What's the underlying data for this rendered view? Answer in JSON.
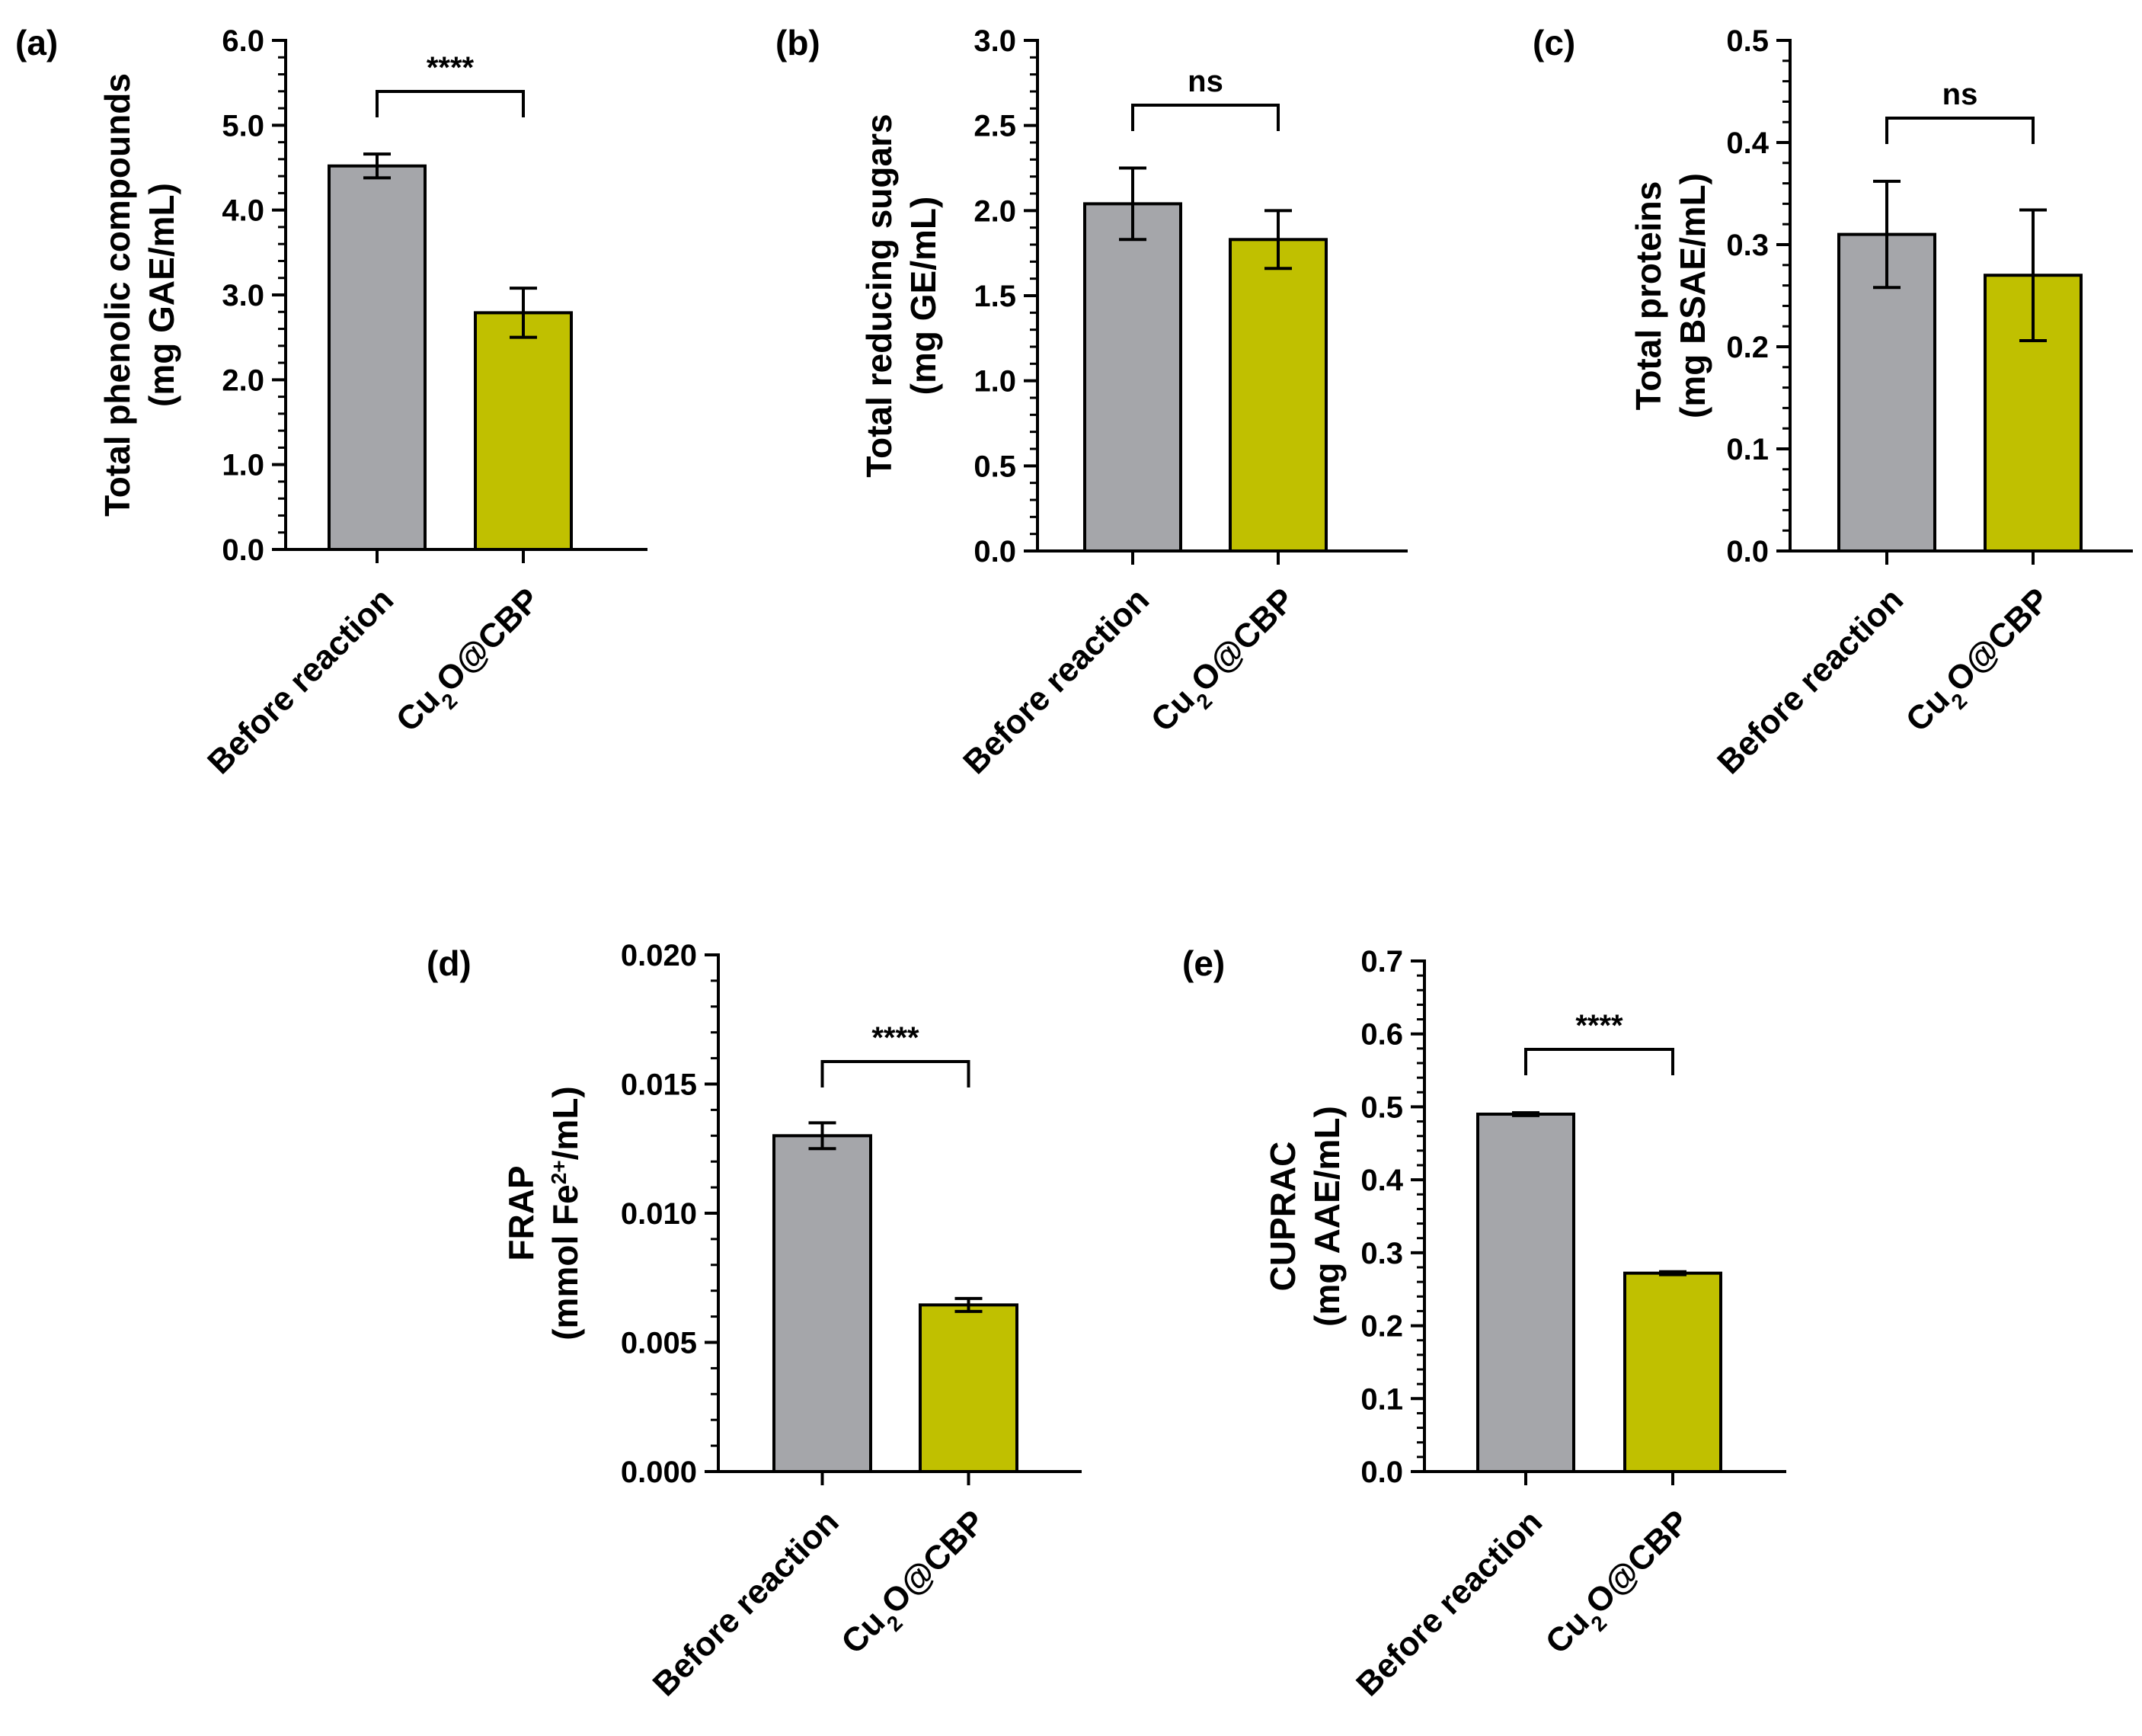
{
  "colors": {
    "before": "#a5a6aa",
    "after": "#c0c000",
    "axis": "#000000"
  },
  "chart_data": [
    {
      "id": "a",
      "type": "bar",
      "panel_label": "(a)",
      "categories": [
        "Before reaction",
        "Cu2O@CBP"
      ],
      "category_parts": [
        [
          {
            "t": "Before reaction"
          }
        ],
        [
          {
            "t": "Cu"
          },
          {
            "t": "2",
            "sub": true
          },
          {
            "t": "O@CBP"
          }
        ]
      ],
      "values": [
        4.52,
        2.79
      ],
      "errors": [
        0.14,
        0.29
      ],
      "ylabel_lines": [
        [
          {
            "t": "Total phenolic compounds"
          }
        ],
        [
          {
            "t": "(mg GAE/mL)"
          }
        ]
      ],
      "ylim": [
        0,
        6.0
      ],
      "ticks": [
        "0.0",
        "1.0",
        "2.0",
        "3.0",
        "4.0",
        "5.0",
        "6.0"
      ],
      "minor_per_major": 5,
      "significance": "****"
    },
    {
      "id": "b",
      "type": "bar",
      "panel_label": "(b)",
      "categories": [
        "Before reaction",
        "Cu2O@CBP"
      ],
      "category_parts": [
        [
          {
            "t": "Before reaction"
          }
        ],
        [
          {
            "t": "Cu"
          },
          {
            "t": "2",
            "sub": true
          },
          {
            "t": "O@CBP"
          }
        ]
      ],
      "values": [
        2.04,
        1.83
      ],
      "errors": [
        0.21,
        0.17
      ],
      "ylabel_lines": [
        [
          {
            "t": "Total reducing sugars"
          }
        ],
        [
          {
            "t": "(mg GE/mL)"
          }
        ]
      ],
      "ylim": [
        0,
        3.0
      ],
      "ticks": [
        "0.0",
        "0.5",
        "1.0",
        "1.5",
        "2.0",
        "2.5",
        "3.0"
      ],
      "minor_per_major": 5,
      "significance": "ns"
    },
    {
      "id": "c",
      "type": "bar",
      "panel_label": "(c)",
      "categories": [
        "Before reaction",
        "Cu2O@CBP"
      ],
      "category_parts": [
        [
          {
            "t": "Before reaction"
          }
        ],
        [
          {
            "t": "Cu"
          },
          {
            "t": "2",
            "sub": true
          },
          {
            "t": "O@CBP"
          }
        ]
      ],
      "values": [
        0.31,
        0.27
      ],
      "errors": [
        0.052,
        0.064
      ],
      "ylabel_lines": [
        [
          {
            "t": "Total proteins"
          }
        ],
        [
          {
            "t": "(mg BSAE/mL)"
          }
        ]
      ],
      "ylim": [
        0,
        0.5
      ],
      "ticks": [
        "0.0",
        "0.1",
        "0.2",
        "0.3",
        "0.4",
        "0.5"
      ],
      "minor_per_major": 5,
      "significance": "ns"
    },
    {
      "id": "d",
      "type": "bar",
      "panel_label": "(d)",
      "categories": [
        "Before reaction",
        "Cu2O@CBP"
      ],
      "category_parts": [
        [
          {
            "t": "Before reaction"
          }
        ],
        [
          {
            "t": "Cu"
          },
          {
            "t": "2",
            "sub": true
          },
          {
            "t": "O@CBP"
          }
        ]
      ],
      "values": [
        0.013,
        0.00645
      ],
      "errors": [
        0.0005,
        0.00025
      ],
      "ylabel_lines": [
        [
          {
            "t": "FRAP"
          }
        ],
        [
          {
            "t": "(mmol Fe"
          },
          {
            "t": "2+",
            "sup": true
          },
          {
            "t": "/mL)"
          }
        ]
      ],
      "ylim": [
        0,
        0.02
      ],
      "ticks": [
        "0.000",
        "0.005",
        "0.010",
        "0.015",
        "0.020"
      ],
      "minor_per_major": 5,
      "significance": "****"
    },
    {
      "id": "e",
      "type": "bar",
      "panel_label": "(e)",
      "categories": [
        "Before reaction",
        "Cu2O@CBP"
      ],
      "category_parts": [
        [
          {
            "t": "Before reaction"
          }
        ],
        [
          {
            "t": "Cu"
          },
          {
            "t": "2",
            "sub": true
          },
          {
            "t": "O@CBP"
          }
        ]
      ],
      "values": [
        0.49,
        0.272
      ],
      "errors": [
        0.002,
        0.002
      ],
      "ylabel_lines": [
        [
          {
            "t": "CUPRAC"
          }
        ],
        [
          {
            "t": "(mg AAE/mL)"
          }
        ]
      ],
      "ylim": [
        0,
        0.7
      ],
      "ticks": [
        "0.0",
        "0.1",
        "0.2",
        "0.3",
        "0.4",
        "0.5",
        "0.6",
        "0.7"
      ],
      "minor_per_major": 5,
      "significance": "****"
    }
  ]
}
